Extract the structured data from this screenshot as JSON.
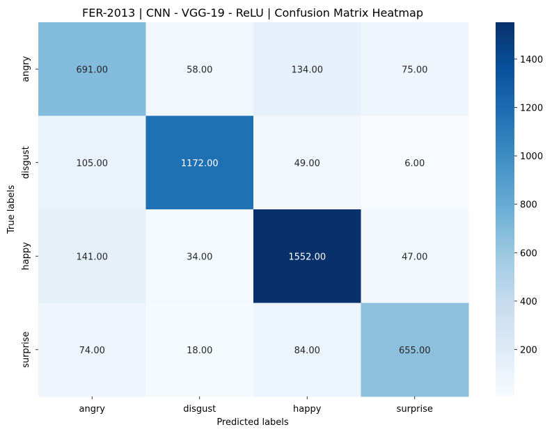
{
  "chart_data": {
    "type": "heatmap",
    "title": "FER-2013 | CNN - VGG-19 - ReLU | Confusion Matrix Heatmap",
    "xlabel": "Predicted labels",
    "ylabel": "True labels",
    "x_categories": [
      "angry",
      "disgust",
      "happy",
      "surprise"
    ],
    "y_categories": [
      "angry",
      "disgust",
      "happy",
      "surprise"
    ],
    "values": [
      [
        691,
        58,
        134,
        75
      ],
      [
        105,
        1172,
        49,
        6
      ],
      [
        141,
        34,
        1552,
        47
      ],
      [
        74,
        18,
        84,
        655
      ]
    ],
    "value_format": "2-decimals",
    "colormap": "Blues",
    "color_range": [
      6,
      1552
    ],
    "colorbar_ticks": [
      200,
      400,
      600,
      800,
      1000,
      1200,
      1400
    ],
    "colorbar_tick_labels": [
      "200",
      "400",
      "600",
      "800",
      "1000",
      "1200",
      "1400"
    ],
    "grid": false,
    "legend": "colorbar-right"
  }
}
